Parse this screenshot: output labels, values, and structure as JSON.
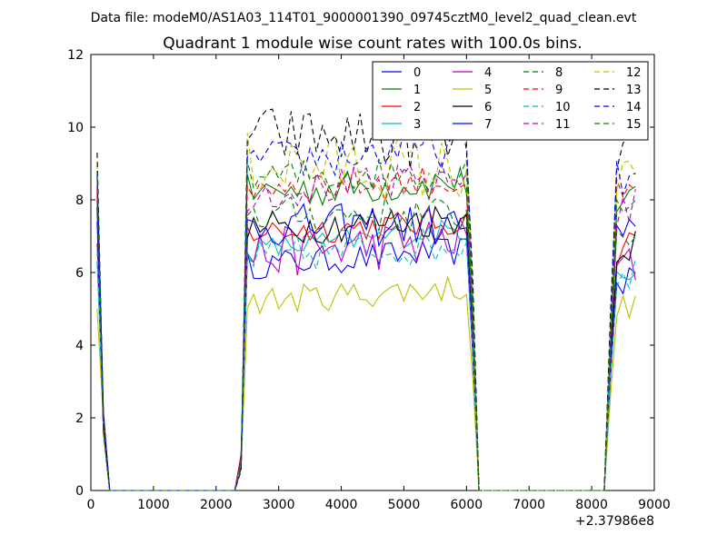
{
  "header": {
    "file_caption": "Data file: modeM0/AS1A03_114T01_9000001390_09745cztM0_level2_quad_clean.evt"
  },
  "chart_data": {
    "type": "line",
    "title": "Quadrant 1 module wise count rates with 100.0s bins.",
    "xlabel": "",
    "ylabel": "",
    "x_offset_label": "+2.37986e8",
    "xlim": [
      0,
      9000
    ],
    "ylim": [
      0,
      12
    ],
    "x_ticks": [
      0,
      1000,
      2000,
      3000,
      4000,
      5000,
      6000,
      7000,
      8000,
      9000
    ],
    "y_ticks": [
      0,
      2,
      4,
      6,
      8,
      10,
      12
    ],
    "grid": false,
    "legend_position": "top-right",
    "legend_columns": 4,
    "series": [
      {
        "name": "0",
        "color": "#0000ff",
        "dash": "solid",
        "base": 6.2,
        "drift": 0.1,
        "low": 6.6,
        "start": 8.0
      },
      {
        "name": "1",
        "color": "#008000",
        "dash": "solid",
        "base": 8.2,
        "drift": 0.2,
        "low": 8.5,
        "start": 8.6
      },
      {
        "name": "2",
        "color": "#ff0000",
        "dash": "solid",
        "base": 7.1,
        "drift": 0.1,
        "low": 7.4,
        "start": 8.1
      },
      {
        "name": "3",
        "color": "#00bfbf",
        "dash": "solid",
        "base": 6.6,
        "drift": 0.05,
        "low": 7.2,
        "start": 6.3
      },
      {
        "name": "4",
        "color": "#bf00bf",
        "dash": "solid",
        "base": 6.5,
        "drift": 0.4,
        "low": 6.9,
        "start": 6.8
      },
      {
        "name": "5",
        "color": "#bfbf00",
        "dash": "solid",
        "base": 5.2,
        "drift": 0.1,
        "low": 5.6,
        "start": 5.0
      },
      {
        "name": "6",
        "color": "#000000",
        "dash": "solid",
        "base": 7.2,
        "drift": 0.2,
        "low": 7.5,
        "start": 7.8
      },
      {
        "name": "7",
        "color": "#0000ff",
        "dash": "solid",
        "base": 7.3,
        "drift": 0.3,
        "low": 7.3,
        "start": 7.4
      },
      {
        "name": "8",
        "color": "#008000",
        "dash": "dashed",
        "base": 7.6,
        "drift": 0.2,
        "low": 7.6,
        "start": 8.2
      },
      {
        "name": "9",
        "color": "#ff0000",
        "dash": "dashed",
        "base": 8.4,
        "drift": 0.2,
        "low": 8.5,
        "start": 8.3
      },
      {
        "name": "10",
        "color": "#00bfbf",
        "dash": "dashed",
        "base": 6.4,
        "drift": 0.2,
        "low": 6.8,
        "start": 6.6
      },
      {
        "name": "11",
        "color": "#bf00bf",
        "dash": "dashed",
        "base": 8.2,
        "drift": 0.2,
        "low": 8.6,
        "start": 8.4
      },
      {
        "name": "12",
        "color": "#bfbf00",
        "dash": "dashed",
        "base": 9.0,
        "drift": 0.6,
        "low": 8.8,
        "start": 9.0
      },
      {
        "name": "13",
        "color": "#000000",
        "dash": "dashed",
        "base": 9.8,
        "drift": 0.5,
        "low": 9.6,
        "start": 9.3
      },
      {
        "name": "14",
        "color": "#0000ff",
        "dash": "dashed",
        "base": 9.0,
        "drift": 0.3,
        "low": 9.5,
        "start": 8.7
      },
      {
        "name": "15",
        "color": "#008000",
        "dash": "dashed",
        "base": 8.6,
        "drift": 0.2,
        "low": 8.8,
        "start": 8.8
      }
    ],
    "segments": {
      "active_1": [
        2400,
        6100
      ],
      "active_2": [
        8300,
        8700
      ],
      "start_bin": 100,
      "bin_width": 100
    }
  }
}
